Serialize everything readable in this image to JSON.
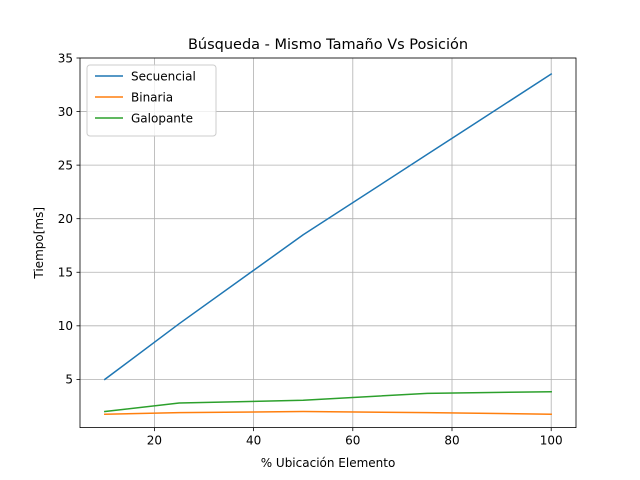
{
  "chart_data": {
    "type": "line",
    "title": "Búsqueda - Mismo Tamaño Vs Posición",
    "xlabel": "% Ubicación Elemento",
    "ylabel": "Tiempo[ms]",
    "xlim": [
      5,
      105
    ],
    "ylim": [
      0.5,
      35
    ],
    "xticks": [
      20,
      40,
      60,
      80,
      100
    ],
    "yticks": [
      5,
      10,
      15,
      20,
      25,
      30,
      35
    ],
    "grid": true,
    "legend_position": "upper-left",
    "x": [
      10,
      25,
      50,
      75,
      100
    ],
    "series": [
      {
        "name": "Secuencial",
        "color": "#1f77b4",
        "values": [
          5.0,
          10.2,
          18.5,
          26.0,
          33.5
        ]
      },
      {
        "name": "Binaria",
        "color": "#ff7f0e",
        "values": [
          1.75,
          1.9,
          2.0,
          1.9,
          1.75
        ]
      },
      {
        "name": "Galopante",
        "color": "#2ca02c",
        "values": [
          2.0,
          2.8,
          3.05,
          3.7,
          3.85
        ]
      }
    ]
  }
}
